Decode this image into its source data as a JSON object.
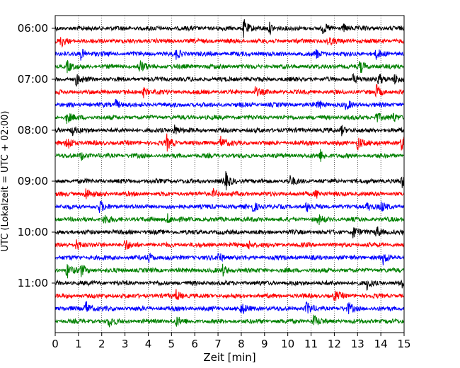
{
  "chart_data": {
    "type": "line",
    "title": "",
    "xlabel": "Zeit  [min]",
    "ylabel": "UTC (Lokalzeit = UTC + 02:00)",
    "xlim": [
      0,
      15
    ],
    "x_ticks": [
      "0",
      "1",
      "2",
      "3",
      "4",
      "5",
      "6",
      "7",
      "8",
      "9",
      "10",
      "11",
      "12",
      "13",
      "14",
      "15"
    ],
    "y_ticks": [
      "06:00",
      "07:00",
      "08:00",
      "09:00",
      "10:00",
      "11:00"
    ],
    "grid": "vertical dotted lines at each minute",
    "trace_interval_minutes": 15,
    "trace_colors": [
      "#000000",
      "#ff0000",
      "#0000ff",
      "#008000"
    ],
    "traces": [
      {
        "start": "06:00",
        "color": "#000000",
        "events": [
          [
            8.1,
            1.0
          ],
          [
            9.2,
            0.6
          ],
          [
            11.5,
            0.5
          ],
          [
            12.4,
            0.4
          ]
        ]
      },
      {
        "start": "06:15",
        "color": "#ff0000",
        "events": [
          [
            0.25,
            0.6
          ],
          [
            11.7,
            0.5
          ]
        ]
      },
      {
        "start": "06:30",
        "color": "#0000ff",
        "events": [
          [
            1.1,
            0.6
          ],
          [
            5.2,
            0.5
          ],
          [
            11.2,
            0.5
          ],
          [
            13.8,
            0.5
          ]
        ]
      },
      {
        "start": "06:45",
        "color": "#008000",
        "events": [
          [
            0.5,
            0.6
          ],
          [
            3.6,
            0.8
          ],
          [
            13.1,
            0.7
          ]
        ]
      },
      {
        "start": "07:00",
        "color": "#000000",
        "events": [
          [
            0.9,
            0.7
          ],
          [
            12.8,
            0.5
          ],
          [
            13.9,
            0.7
          ],
          [
            14.6,
            0.5
          ]
        ]
      },
      {
        "start": "07:15",
        "color": "#ff0000",
        "events": [
          [
            3.8,
            0.5
          ],
          [
            8.6,
            0.5
          ],
          [
            13.8,
            0.7
          ]
        ]
      },
      {
        "start": "07:30",
        "color": "#0000ff",
        "events": [
          [
            2.6,
            0.5
          ],
          [
            11.3,
            0.5
          ],
          [
            12.5,
            0.5
          ]
        ]
      },
      {
        "start": "07:45",
        "color": "#008000",
        "events": [
          [
            0.5,
            0.6
          ],
          [
            13.8,
            0.6
          ],
          [
            14.5,
            0.5
          ]
        ]
      },
      {
        "start": "08:00",
        "color": "#000000",
        "events": [
          [
            0.7,
            0.6
          ],
          [
            5.1,
            0.6
          ],
          [
            12.3,
            0.5
          ]
        ]
      },
      {
        "start": "08:15",
        "color": "#ff0000",
        "events": [
          [
            0.5,
            0.9
          ],
          [
            4.8,
            0.8
          ],
          [
            7.1,
            0.7
          ],
          [
            13.0,
            0.8
          ],
          [
            14.9,
            1.0
          ]
        ]
      },
      {
        "start": "08:30",
        "color": "#008000",
        "events": [
          [
            1.1,
            0.5
          ],
          [
            11.4,
            0.6
          ]
        ]
      },
      {
        "start": "09:00",
        "color": "#000000",
        "events": [
          [
            7.3,
            1.0
          ],
          [
            10.1,
            0.5
          ],
          [
            14.9,
            0.6
          ]
        ]
      },
      {
        "start": "09:15",
        "color": "#ff0000",
        "events": [
          [
            1.3,
            0.7
          ],
          [
            6.8,
            0.5
          ],
          [
            11.2,
            0.5
          ]
        ]
      },
      {
        "start": "09:30",
        "color": "#0000ff",
        "events": [
          [
            1.9,
            0.6
          ],
          [
            8.5,
            0.6
          ],
          [
            10.8,
            0.5
          ],
          [
            13.4,
            0.5
          ],
          [
            14.0,
            0.5
          ]
        ]
      },
      {
        "start": "09:45",
        "color": "#008000",
        "events": [
          [
            2.1,
            0.6
          ],
          [
            4.8,
            0.6
          ],
          [
            11.3,
            0.5
          ]
        ]
      },
      {
        "start": "10:00",
        "color": "#000000",
        "events": [
          [
            12.8,
            0.7
          ],
          [
            13.8,
            0.7
          ]
        ]
      },
      {
        "start": "10:15",
        "color": "#ff0000",
        "events": [
          [
            0.9,
            0.6
          ],
          [
            3.0,
            0.6
          ],
          [
            8.3,
            0.5
          ]
        ]
      },
      {
        "start": "10:30",
        "color": "#0000ff",
        "events": [
          [
            4.0,
            0.5
          ],
          [
            7.0,
            0.6
          ],
          [
            14.1,
            0.6
          ]
        ]
      },
      {
        "start": "10:45",
        "color": "#008000",
        "events": [
          [
            0.5,
            0.9
          ],
          [
            1.1,
            0.6
          ],
          [
            7.2,
            0.5
          ]
        ]
      },
      {
        "start": "11:00",
        "color": "#000000",
        "events": [
          [
            13.4,
            0.6
          ],
          [
            14.9,
            0.6
          ]
        ]
      },
      {
        "start": "11:15",
        "color": "#ff0000",
        "events": [
          [
            5.2,
            0.6
          ],
          [
            12.0,
            0.5
          ]
        ]
      },
      {
        "start": "11:30",
        "color": "#0000ff",
        "events": [
          [
            1.3,
            0.9
          ],
          [
            8.0,
            0.6
          ],
          [
            10.8,
            0.7
          ],
          [
            12.6,
            0.6
          ]
        ]
      },
      {
        "start": "11:45",
        "color": "#008000",
        "events": [
          [
            2.3,
            0.6
          ],
          [
            5.2,
            0.5
          ],
          [
            11.1,
            0.7
          ]
        ]
      }
    ]
  }
}
